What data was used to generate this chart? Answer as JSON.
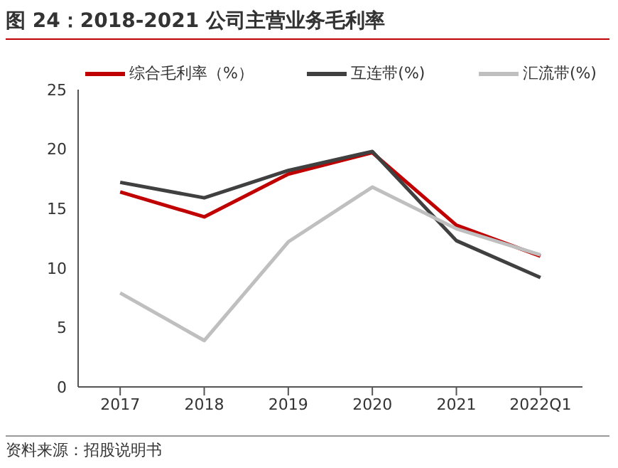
{
  "chart_data": {
    "type": "line",
    "title": "图 24：2018-2021 公司主营业务毛利率",
    "categories": [
      "2017",
      "2018",
      "2019",
      "2020",
      "2021",
      "2022Q1"
    ],
    "series": [
      {
        "name": "综合毛利率（%）",
        "color": "#c00000",
        "values": [
          16.4,
          14.3,
          17.9,
          19.7,
          13.6,
          11.0
        ]
      },
      {
        "name": "互连带(%)",
        "color": "#404040",
        "values": [
          17.2,
          15.9,
          18.2,
          19.8,
          12.3,
          9.2
        ]
      },
      {
        "name": "汇流带(%)",
        "color": "#bfbfbf",
        "values": [
          7.9,
          3.9,
          12.2,
          16.8,
          13.3,
          11.1
        ]
      }
    ],
    "ylim": [
      0,
      25
    ],
    "yticks": [
      0,
      5,
      10,
      15,
      20,
      25
    ],
    "grid": false,
    "legend": "top",
    "marker": "none",
    "annotations": [
      "资料来源：招股说明书"
    ]
  }
}
